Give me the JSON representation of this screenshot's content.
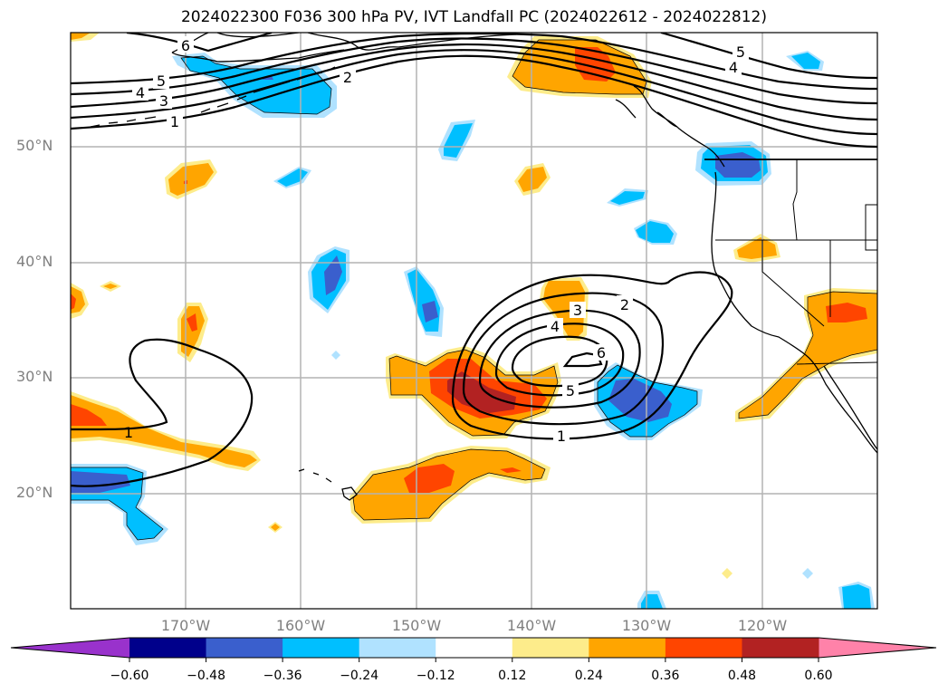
{
  "title": "2024022300 F036 300 hPa PV, IVT Landfall PC (2024022612 - 2024022812)",
  "map": {
    "projection": "PlateCarree",
    "lon_range": [
      -180,
      -110
    ],
    "lat_range": [
      10,
      60
    ],
    "lat_ticks": [
      {
        "value": 50,
        "label": "50°N"
      },
      {
        "value": 40,
        "label": "40°N"
      },
      {
        "value": 30,
        "label": "30°N"
      },
      {
        "value": 20,
        "label": "20°N"
      }
    ],
    "lon_ticks": [
      {
        "value": -170,
        "label": "170°W"
      },
      {
        "value": -160,
        "label": "160°W"
      },
      {
        "value": -150,
        "label": "150°W"
      },
      {
        "value": -140,
        "label": "140°W"
      },
      {
        "value": -130,
        "label": "130°W"
      },
      {
        "value": -120,
        "label": "120°W"
      }
    ],
    "gridlines": true,
    "gridline_color": "#b3b3b3",
    "pv_contour_labels": [
      "1",
      "2",
      "3",
      "4",
      "5",
      "6"
    ]
  },
  "colorbar": {
    "orientation": "horizontal",
    "extend": "both",
    "under_color": "#9932cc",
    "over_color": "#ff82a9",
    "colors": [
      "#00008b",
      "#3a5fcd",
      "#00bfff",
      "#b0e2ff",
      "#ffffff",
      "#fdec8b",
      "#ffa500",
      "#ff4500",
      "#b22222"
    ],
    "ticks": [
      "−0.60",
      "−0.48",
      "−0.36",
      "−0.24",
      "−0.12",
      "0.12",
      "0.24",
      "0.36",
      "0.48",
      "0.60"
    ],
    "boundaries": [
      -0.6,
      -0.48,
      -0.36,
      -0.24,
      -0.12,
      0.12,
      0.24,
      0.36,
      0.48,
      0.6
    ]
  }
}
